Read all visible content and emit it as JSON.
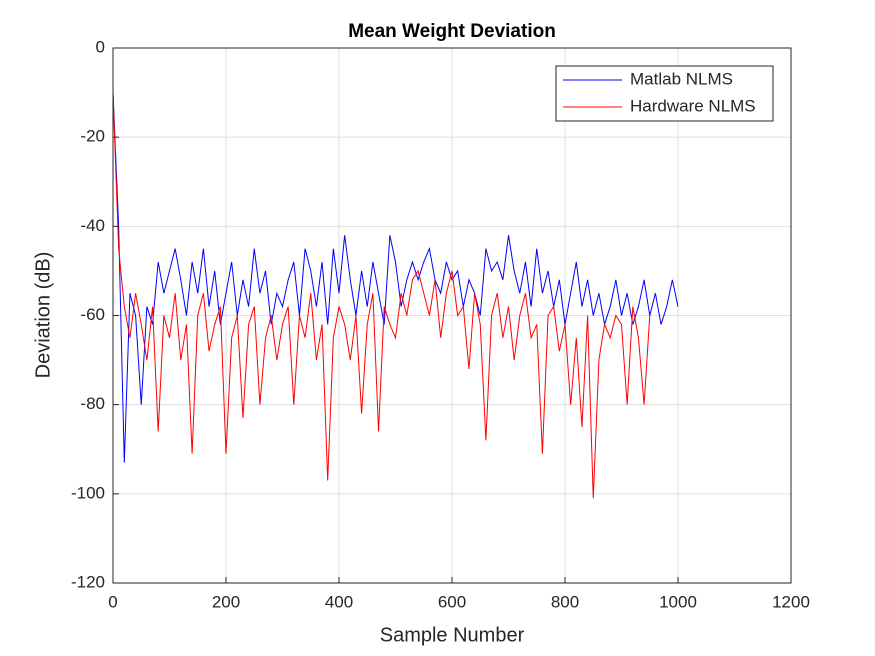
{
  "chart_data": {
    "type": "line",
    "title": "Mean Weight Deviation",
    "xlabel": "Sample Number",
    "ylabel": "Deviation (dB)",
    "x": [
      0,
      10,
      20,
      30,
      40,
      50,
      60,
      70,
      80,
      90,
      100,
      110,
      120,
      130,
      140,
      150,
      160,
      170,
      180,
      190,
      200,
      210,
      220,
      230,
      240,
      250,
      260,
      270,
      280,
      290,
      300,
      310,
      320,
      330,
      340,
      350,
      360,
      370,
      380,
      390,
      400,
      410,
      420,
      430,
      440,
      450,
      460,
      470,
      480,
      490,
      500,
      510,
      520,
      530,
      540,
      550,
      560,
      570,
      580,
      590,
      600,
      610,
      620,
      630,
      640,
      650,
      660,
      670,
      680,
      690,
      700,
      710,
      720,
      730,
      740,
      750,
      760,
      770,
      780,
      790,
      800,
      810,
      820,
      830,
      840,
      850,
      860,
      870,
      880,
      890,
      900,
      910,
      920,
      930,
      940,
      950,
      960,
      970,
      980,
      990,
      1000
    ],
    "series": [
      {
        "name": "Matlab NLMS",
        "color": "#0000ff",
        "values": [
          -10,
          -40,
          -93,
          -55,
          -60,
          -80,
          -58,
          -62,
          -48,
          -55,
          -50,
          -45,
          -52,
          -60,
          -48,
          -55,
          -45,
          -58,
          -50,
          -62,
          -55,
          -48,
          -60,
          -52,
          -58,
          -45,
          -55,
          -50,
          -62,
          -55,
          -58,
          -52,
          -48,
          -60,
          -45,
          -50,
          -58,
          -48,
          -62,
          -45,
          -55,
          -42,
          -52,
          -60,
          -50,
          -58,
          -48,
          -55,
          -62,
          -42,
          -48,
          -58,
          -52,
          -48,
          -52,
          -48,
          -45,
          -52,
          -55,
          -48,
          -52,
          -50,
          -58,
          -52,
          -55,
          -60,
          -45,
          -50,
          -48,
          -52,
          -42,
          -50,
          -55,
          -48,
          -58,
          -45,
          -55,
          -50,
          -58,
          -52,
          -62,
          -55,
          -48,
          -58,
          -52,
          -60,
          -55,
          -62,
          -58,
          -52,
          -60,
          -55,
          -62,
          -58,
          -52,
          -60,
          -55,
          -62,
          -58,
          -52,
          -58
        ]
      },
      {
        "name": "Hardware NLMS",
        "color": "#ff0000",
        "values": [
          -10,
          -45,
          -58,
          -65,
          -55,
          -62,
          -70,
          -58,
          -86,
          -60,
          -65,
          -55,
          -70,
          -62,
          -91,
          -60,
          -55,
          -68,
          -62,
          -58,
          -91,
          -65,
          -60,
          -83,
          -62,
          -58,
          -80,
          -65,
          -60,
          -70,
          -62,
          -58,
          -80,
          -60,
          -65,
          -55,
          -70,
          -62,
          -97,
          -65,
          -58,
          -62,
          -70,
          -60,
          -82,
          -62,
          -55,
          -86,
          -58,
          -62,
          -65,
          -55,
          -60,
          -52,
          -50,
          -55,
          -60,
          -52,
          -65,
          -55,
          -50,
          -60,
          -58,
          -72,
          -55,
          -62,
          -88,
          -60,
          -55,
          -65,
          -58,
          -70,
          -60,
          -55,
          -65,
          -62,
          -91,
          -60,
          -58,
          -68,
          -62,
          -80,
          -65,
          -85,
          -60,
          -101,
          -70,
          -62,
          -65,
          -60,
          -62,
          -80,
          -58,
          -65,
          -80,
          -60,
          null,
          null,
          null,
          null,
          null
        ]
      }
    ],
    "xlim": [
      0,
      1200
    ],
    "xticks": [
      0,
      200,
      400,
      600,
      800,
      1000,
      1200
    ],
    "ylim": [
      -120,
      0
    ],
    "yticks": [
      -120,
      -100,
      -80,
      -60,
      -40,
      -20,
      0
    ],
    "grid": true,
    "legend": "upper right"
  }
}
